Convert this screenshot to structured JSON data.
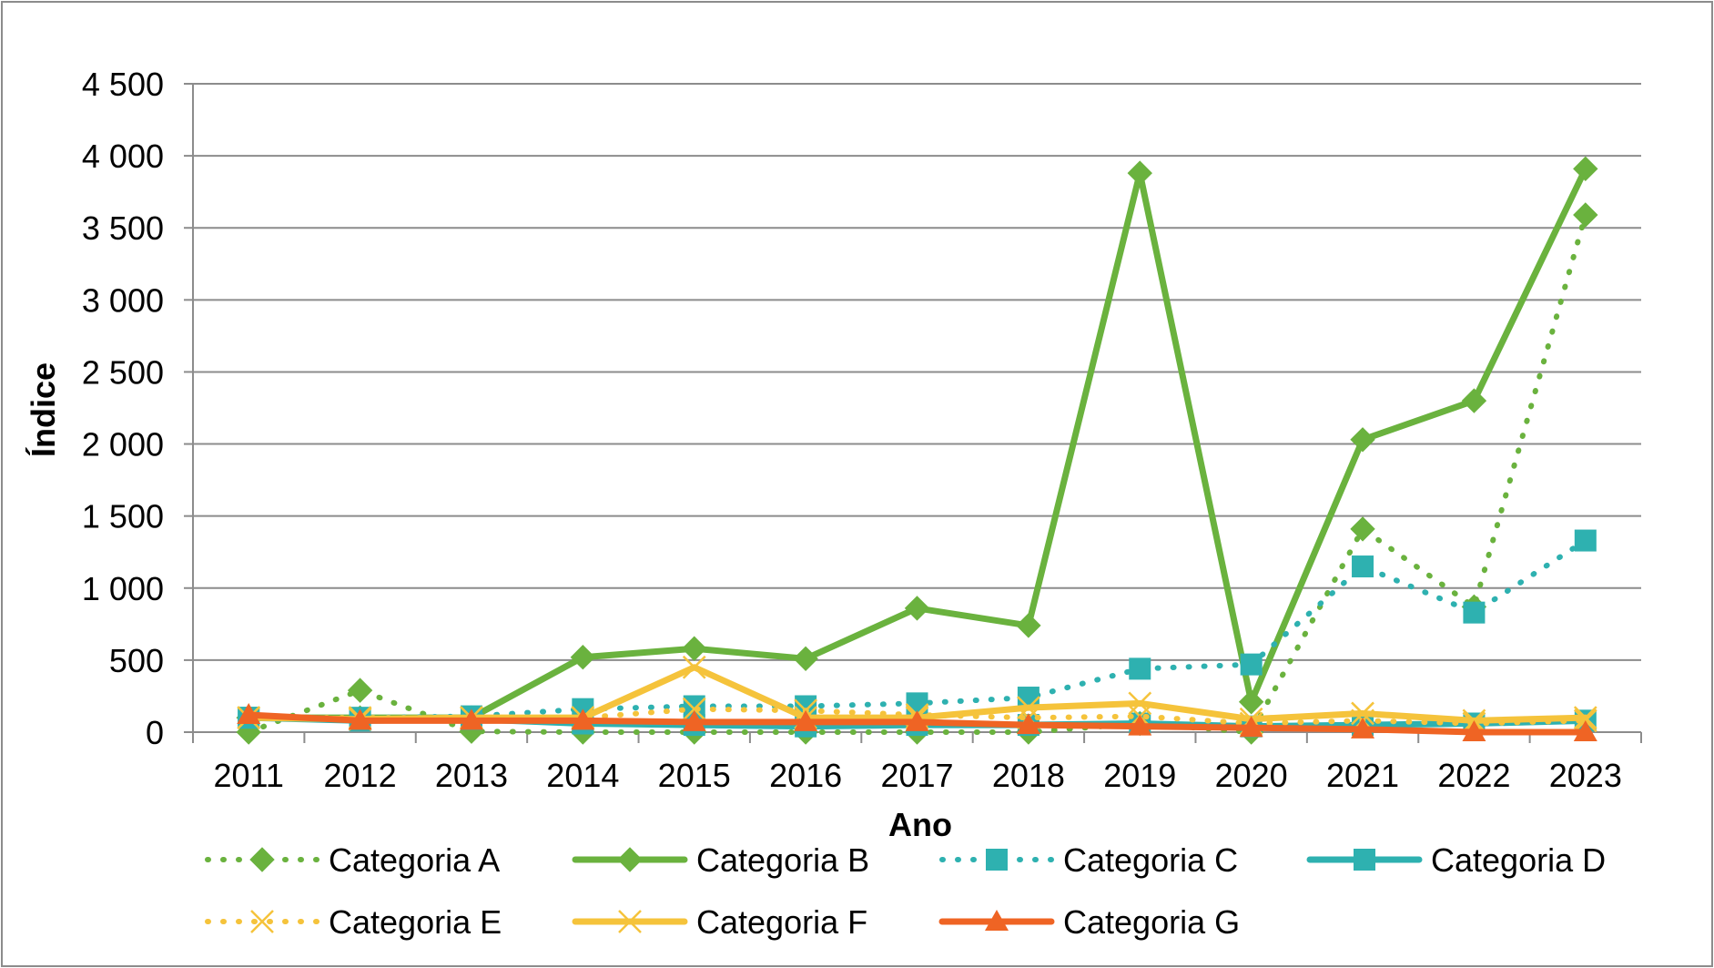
{
  "chart_data": {
    "type": "line",
    "title": "",
    "xlabel": "Ano",
    "ylabel": "Índice",
    "ylim": [
      0,
      4500
    ],
    "y_ticks": [
      0,
      500,
      1000,
      1500,
      2000,
      2500,
      3000,
      3500,
      4000,
      4500
    ],
    "y_tick_labels": [
      "0",
      "500",
      "1 000",
      "1 500",
      "2 000",
      "2 500",
      "3 000",
      "3 500",
      "4 000",
      "4 500"
    ],
    "x": [
      "2011",
      "2012",
      "2013",
      "2014",
      "2015",
      "2016",
      "2017",
      "2018",
      "2019",
      "2020",
      "2021",
      "2022",
      "2023"
    ],
    "grid": "horizontal",
    "legend_position": "bottom",
    "series": [
      {
        "name": "Categoria A",
        "color": "#6ab23e",
        "line": "dotted",
        "marker": "diamond",
        "values": [
          0,
          290,
          5,
          0,
          0,
          0,
          0,
          0,
          60,
          0,
          1410,
          870,
          3590
        ]
      },
      {
        "name": "Categoria B",
        "color": "#6ab23e",
        "line": "solid",
        "marker": "diamond",
        "values": [
          100,
          100,
          100,
          520,
          580,
          510,
          860,
          740,
          3880,
          210,
          2030,
          2300,
          3910
        ]
      },
      {
        "name": "Categoria C",
        "color": "#2eb1b0",
        "line": "dotted",
        "marker": "square",
        "values": [
          100,
          100,
          110,
          160,
          180,
          180,
          200,
          240,
          440,
          470,
          1150,
          830,
          1330
        ]
      },
      {
        "name": "Categoria D",
        "color": "#2eb1b0",
        "line": "solid",
        "marker": "square",
        "values": [
          100,
          80,
          90,
          60,
          50,
          40,
          50,
          50,
          60,
          40,
          50,
          60,
          80
        ]
      },
      {
        "name": "Categoria E",
        "color": "#f5c33b",
        "line": "dotted",
        "marker": "x",
        "values": [
          100,
          100,
          100,
          100,
          160,
          150,
          120,
          100,
          110,
          60,
          80,
          60,
          80
        ]
      },
      {
        "name": "Categoria F",
        "color": "#f5c33b",
        "line": "solid",
        "marker": "x",
        "values": [
          100,
          90,
          100,
          100,
          450,
          100,
          100,
          170,
          200,
          90,
          130,
          80,
          100
        ]
      },
      {
        "name": "Categoria G",
        "color": "#ef6424",
        "line": "solid",
        "marker": "triangle",
        "values": [
          120,
          80,
          80,
          80,
          70,
          70,
          70,
          50,
          40,
          30,
          20,
          0,
          0
        ]
      }
    ]
  }
}
